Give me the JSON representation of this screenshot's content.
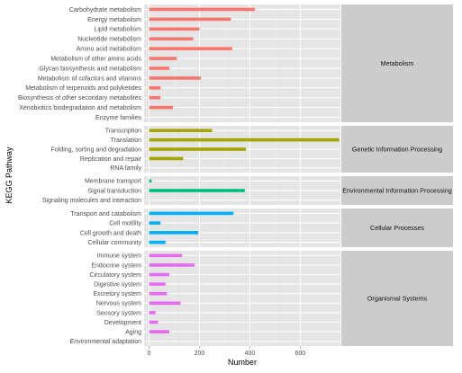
{
  "chart_data": {
    "type": "bar",
    "orientation": "horizontal",
    "xlabel": "Number",
    "ylabel": "KEGG Pathway",
    "xlim": [
      -20,
      760
    ],
    "xticks": [
      0,
      200,
      400,
      600
    ],
    "grid": true,
    "legend": "none",
    "panels": [
      {
        "name": "Metabolism",
        "color": "#F8766D",
        "categories": [
          "Carbohydrate metabolism",
          "Energy metabolism",
          "Lipid metabolism",
          "Nucleotide metabolism",
          "Amino acid metabolism",
          "Metabolism of other amino acids",
          "Glycan biosynthesis and metabolism",
          "Metabolism of cofactors and vitamins",
          "Metabolism of terpenoids and polyketides",
          "Biosynthesis of other secondary metabolites",
          "Xenobiotics biodegradation and metabolism",
          "Enzyme families"
        ],
        "values": [
          420,
          325,
          200,
          175,
          330,
          110,
          80,
          205,
          45,
          45,
          95,
          0
        ]
      },
      {
        "name": "Genetic Information Processing",
        "color": "#A3A500",
        "categories": [
          "Transcription",
          "Translation",
          "Folding, sorting and degradation",
          "Replication and repair",
          "RNA family"
        ],
        "values": [
          250,
          755,
          385,
          135,
          0
        ]
      },
      {
        "name": "Environmental Information Processing",
        "color": "#00BF7D",
        "categories": [
          "Membrane transport",
          "Signal transduction",
          "Signaling molecules and interaction"
        ],
        "values": [
          10,
          380,
          0
        ]
      },
      {
        "name": "Cellular Processes",
        "color": "#00B0F6",
        "categories": [
          "Transport and catabolism",
          "Cell motility",
          "Cell growth and death",
          "Cellular community"
        ],
        "values": [
          335,
          45,
          195,
          65
        ]
      },
      {
        "name": "Organismal Systems",
        "color": "#E76BF3",
        "categories": [
          "Immune system",
          "Endocrine system",
          "Circulatory system",
          "Digestive system",
          "Excretory system",
          "Nervous system",
          "Sensory system",
          "Development",
          "Aging",
          "Environmental adaptation"
        ],
        "values": [
          130,
          180,
          80,
          65,
          70,
          125,
          25,
          35,
          80,
          0
        ]
      }
    ]
  }
}
